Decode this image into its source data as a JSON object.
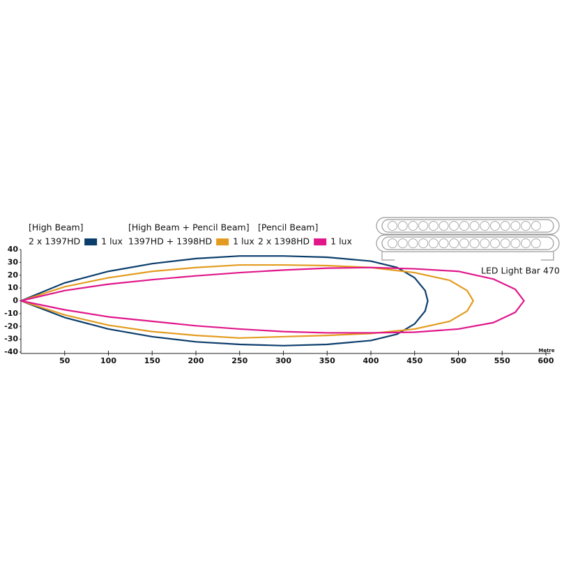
{
  "chart_data": {
    "type": "beam",
    "title": "LED Light Bar 470",
    "x_label": "Metre",
    "xlim": [
      0,
      600
    ],
    "ylim": [
      -40,
      40
    ],
    "xticks": [
      50,
      100,
      150,
      200,
      250,
      300,
      350,
      400,
      450,
      500,
      550,
      600
    ],
    "yticks": [
      40,
      30,
      20,
      10,
      0,
      -10,
      -20,
      -30,
      -40
    ],
    "series": [
      {
        "group": "[High Beam]",
        "name": "2 x 1397HD",
        "label": "1 lux",
        "color": "#0b3d6b",
        "x": [
          0,
          50,
          100,
          150,
          200,
          250,
          300,
          350,
          400,
          430,
          450,
          462,
          465,
          462,
          450,
          430,
          400,
          350,
          300,
          250,
          200,
          150,
          100,
          50,
          0
        ],
        "values": [
          0,
          14,
          23,
          29,
          33,
          35,
          35,
          34,
          31,
          26,
          18,
          8,
          0,
          -8,
          -18,
          -26,
          -31,
          -34,
          -35,
          -34,
          -32,
          -28,
          -22,
          -13,
          0
        ]
      },
      {
        "group": "[High Beam + Pencil Beam]",
        "name": "1397HD + 1398HD",
        "label": "1 lux",
        "color": "#e39b1f",
        "x": [
          0,
          50,
          100,
          150,
          200,
          250,
          300,
          350,
          400,
          450,
          490,
          510,
          517,
          510,
          490,
          450,
          400,
          350,
          300,
          250,
          200,
          150,
          100,
          50,
          0
        ],
        "values": [
          0,
          11,
          18,
          23,
          26,
          28,
          28,
          27.5,
          26,
          22,
          16,
          8,
          0,
          -8,
          -16,
          -22,
          -25.5,
          -27,
          -28,
          -29,
          -27,
          -24,
          -19,
          -11,
          0
        ]
      },
      {
        "group": "[Pencil Beam]",
        "name": "2 x 1398HD",
        "label": "1 lux",
        "color": "#e0168a",
        "x": [
          0,
          50,
          100,
          150,
          200,
          250,
          300,
          350,
          400,
          450,
          500,
          540,
          565,
          575,
          565,
          540,
          500,
          450,
          400,
          350,
          300,
          250,
          200,
          150,
          100,
          50,
          0
        ],
        "values": [
          0,
          8,
          13,
          16.5,
          19.5,
          22,
          24,
          25.5,
          26,
          25,
          23,
          17,
          9,
          0,
          -9,
          -17,
          -22,
          -24.5,
          -25,
          -25,
          -24,
          -22,
          -19.5,
          -16,
          -12.5,
          -7,
          0
        ]
      }
    ]
  }
}
